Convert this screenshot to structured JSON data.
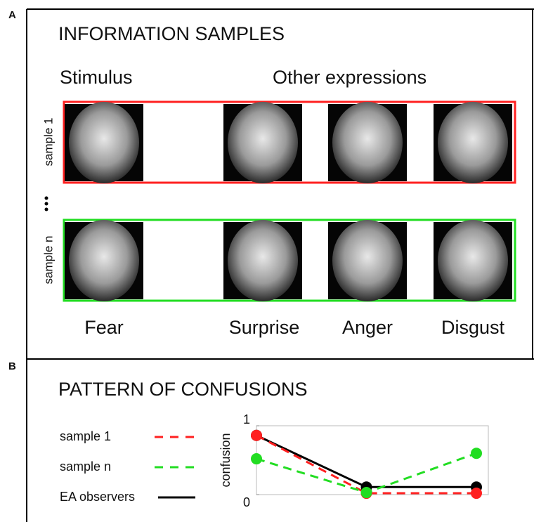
{
  "panel_a": {
    "label": "A",
    "title": "INFORMATION SAMPLES",
    "stimulus_header": "Stimulus",
    "others_header": "Other expressions",
    "rows": [
      "sample 1",
      "sample n"
    ],
    "faces": [
      "Fear",
      "Surprise",
      "Anger",
      "Disgust"
    ]
  },
  "chart_data": {
    "type": "line",
    "panel_label": "B",
    "title": "PATTERN OF CONFUSIONS",
    "y_label": "confusion",
    "categories": [
      null,
      null,
      null
    ],
    "ylim": [
      0,
      1
    ],
    "yticks": [
      0,
      1
    ],
    "series": [
      {
        "name": "EA observers",
        "color": "#000000",
        "dashed": false,
        "values": [
          0.86,
          0.11,
          0.11
        ]
      },
      {
        "name": "sample 1",
        "color": "#ff2020",
        "dashed": true,
        "values": [
          0.86,
          0.02,
          0.02
        ]
      },
      {
        "name": "sample n",
        "color": "#22dd22",
        "dashed": true,
        "values": [
          0.52,
          0.03,
          0.6
        ]
      }
    ]
  }
}
